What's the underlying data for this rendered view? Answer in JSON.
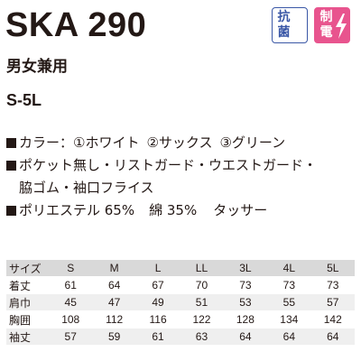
{
  "product": {
    "code": "SKA 290",
    "usage": "男女兼用",
    "size_range": "S-5L"
  },
  "badges": {
    "antibacterial": {
      "label": "抗菌",
      "icon": "antibacterial-icon",
      "color": "#3a57a6"
    },
    "antistatic": {
      "label": "制電",
      "icon": "lightning-icon",
      "color": "#e8548e"
    }
  },
  "features": {
    "color_label": "カラー：",
    "colors": [
      "①ホワイト",
      "②サックス",
      "③グリーン"
    ],
    "spec_line1": "ポケット無し・リストガード・ウエストガード・",
    "spec_line2": "脇ゴム・袖口フライス",
    "material_1": "ポリエステル 65%",
    "material_2": "綿 35%",
    "fabric": "タッサー"
  },
  "size_table": {
    "header_label": "サイズ",
    "sizes": [
      "S",
      "M",
      "L",
      "LL",
      "3L",
      "4L",
      "5L"
    ],
    "rows": [
      {
        "label": "着丈",
        "values": [
          "61",
          "64",
          "67",
          "70",
          "73",
          "73",
          "73"
        ]
      },
      {
        "label": "肩巾",
        "values": [
          "45",
          "47",
          "49",
          "51",
          "53",
          "55",
          "57"
        ]
      },
      {
        "label": "胸囲",
        "values": [
          "108",
          "112",
          "116",
          "122",
          "128",
          "134",
          "142"
        ]
      },
      {
        "label": "袖丈",
        "values": [
          "57",
          "59",
          "61",
          "63",
          "64",
          "64",
          "64"
        ]
      }
    ]
  }
}
